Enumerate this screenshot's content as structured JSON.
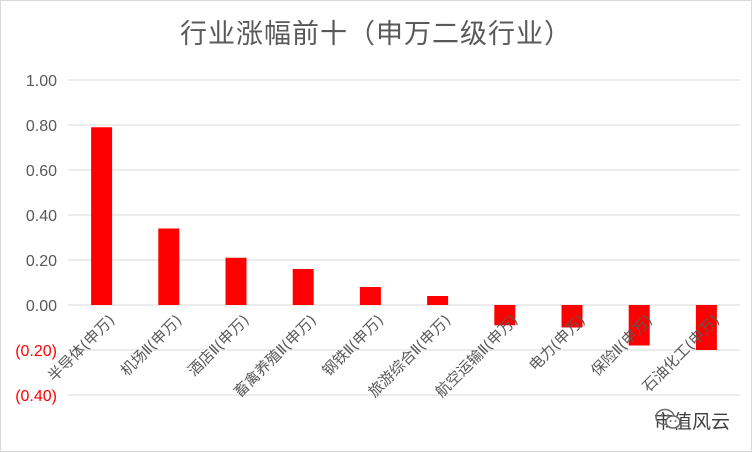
{
  "chart_data": {
    "type": "bar",
    "title": "行业涨幅前十（申万二级行业）",
    "xlabel": "",
    "ylabel": "",
    "categories": [
      "半导体(申万)",
      "机场Ⅱ(申万)",
      "酒店Ⅱ(申万)",
      "畜禽养殖Ⅱ(申万)",
      "钢铁Ⅱ(申万)",
      "旅游综合Ⅱ(申万)",
      "航空运输Ⅱ(申万)",
      "电力(申万)",
      "保险Ⅱ(申万)",
      "石油化工(申万)"
    ],
    "series": [
      {
        "values": [
          0.79,
          0.34,
          0.21,
          0.16,
          0.08,
          0.04,
          -0.09,
          -0.1,
          -0.18,
          -0.2
        ]
      }
    ],
    "ylim": [
      -0.4,
      1.0
    ],
    "yticks": [
      1.0,
      0.8,
      0.6,
      0.4,
      0.2,
      0.0,
      -0.2,
      -0.4
    ],
    "ytick_labels": [
      "1.00",
      "0.80",
      "0.60",
      "0.40",
      "0.20",
      "0.00",
      "(0.20)",
      "(0.40)"
    ],
    "grid": true,
    "bar_color": "#ff0000",
    "axis_label_color": "#595959",
    "negative_label_color": "#ff0000"
  },
  "watermark": {
    "text": "市值风云",
    "icon": "wechat-icon"
  }
}
